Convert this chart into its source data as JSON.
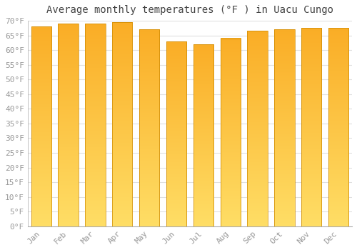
{
  "title": "Average monthly temperatures (°F ) in Uacu Cungo",
  "months": [
    "Jan",
    "Feb",
    "Mar",
    "Apr",
    "May",
    "Jun",
    "Jul",
    "Aug",
    "Sep",
    "Oct",
    "Nov",
    "Dec"
  ],
  "values": [
    68.0,
    69.0,
    69.0,
    69.5,
    67.0,
    63.0,
    62.0,
    64.0,
    66.5,
    67.0,
    67.5,
    67.5
  ],
  "bar_color_left": "#F5A623",
  "bar_color_center": "#FFD060",
  "bar_color_right": "#F5A623",
  "bar_gradient_top": "#FFA500",
  "bar_gradient_bottom": "#FFD070",
  "bar_edge_color": "#CC8800",
  "background_color": "#FFFFFF",
  "grid_color": "#E0E0E0",
  "text_color": "#999999",
  "ylim": [
    0,
    70
  ],
  "ytick_step": 5,
  "title_fontsize": 10,
  "tick_fontsize": 8,
  "bar_width": 0.75
}
